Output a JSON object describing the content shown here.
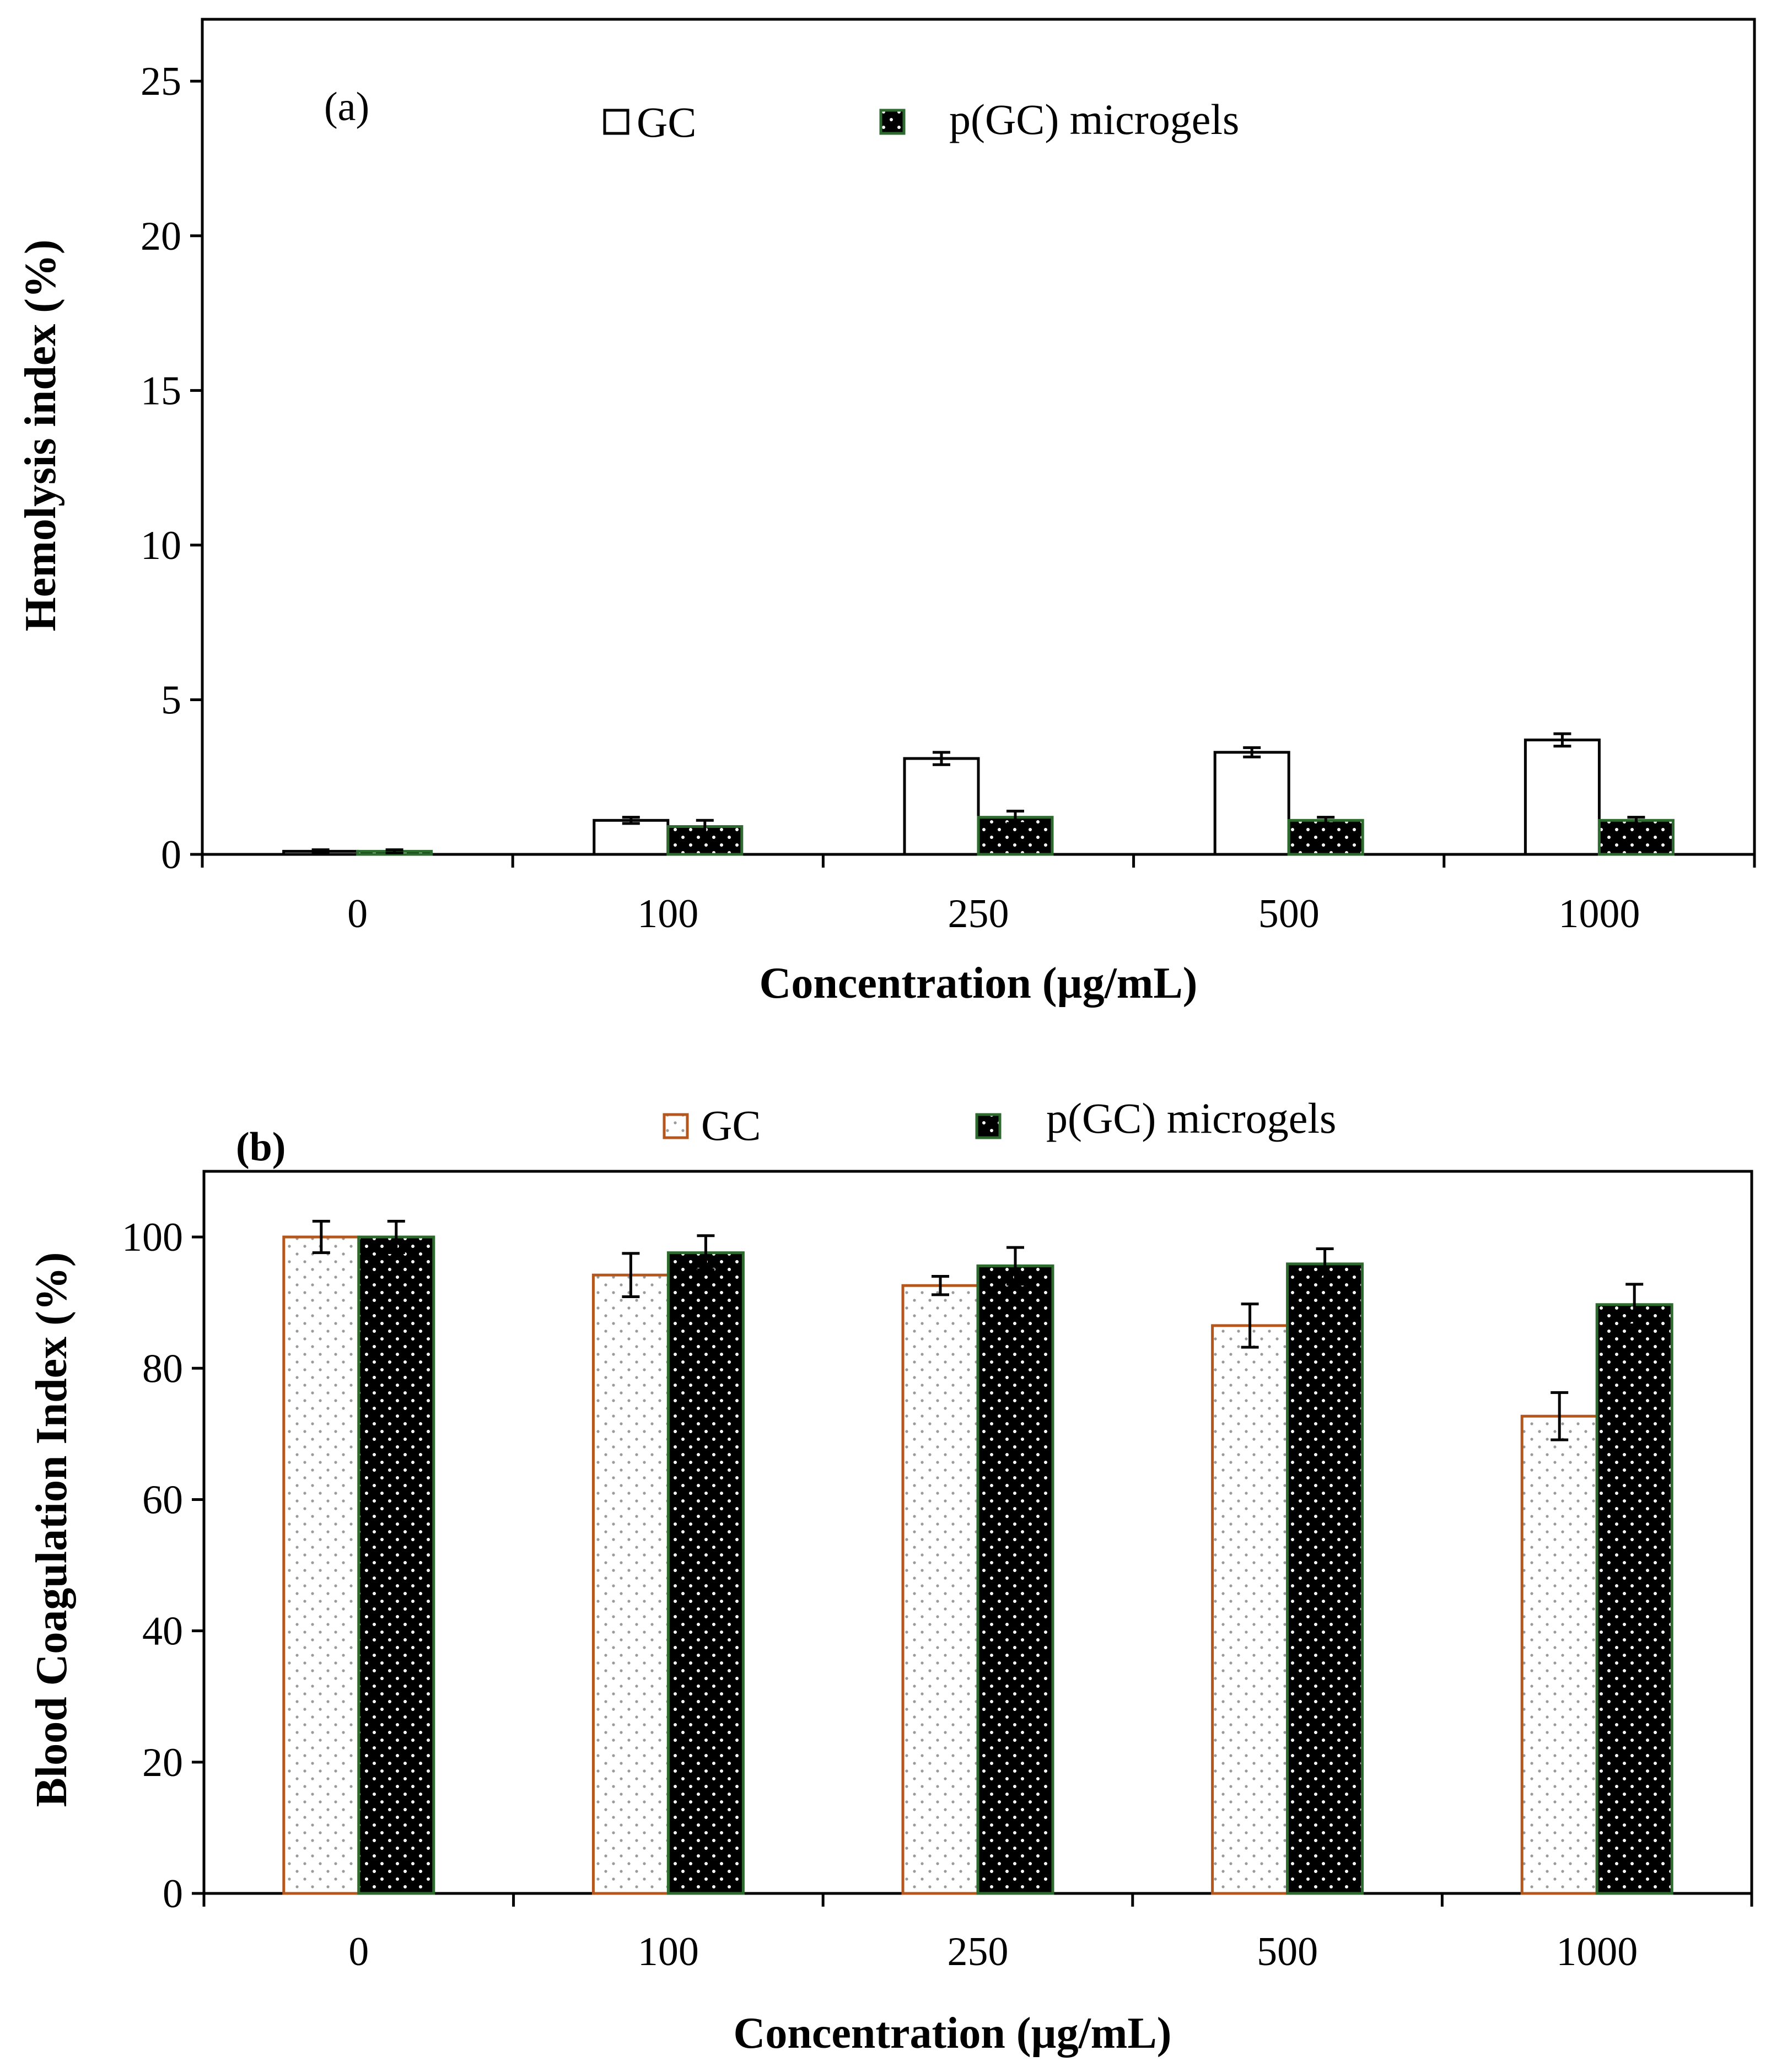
{
  "chart_data": [
    {
      "type": "bar",
      "panel_label": "(a)",
      "title": "",
      "xlabel": "Concentration (µg/mL)",
      "ylabel": "Hemolysis index (%)",
      "categories": [
        "0",
        "100",
        "250",
        "500",
        "1000"
      ],
      "ylim": [
        0,
        27
      ],
      "yticks": [
        0,
        5,
        10,
        15,
        20,
        25
      ],
      "grid": false,
      "legend_position": "top",
      "series": [
        {
          "name": "GC",
          "values": [
            0.1,
            1.1,
            3.1,
            3.3,
            3.7
          ],
          "errors": [
            0.05,
            0.1,
            0.2,
            0.15,
            0.2
          ],
          "fill": "#ffffff",
          "stroke": "#000000",
          "pattern": "none"
        },
        {
          "name": "p(GC) microgels",
          "values": [
            0.1,
            0.9,
            1.2,
            1.1,
            1.1
          ],
          "errors": [
            0.05,
            0.2,
            0.2,
            0.1,
            0.1
          ],
          "fill": "#000000",
          "stroke": "#2e6b2e",
          "pattern": "white-dots"
        }
      ]
    },
    {
      "type": "bar",
      "panel_label": "(b)",
      "title": "",
      "xlabel": "Concentration (µg/mL)",
      "ylabel": "Blood Coagulation Index (%)",
      "categories": [
        "0",
        "100",
        "250",
        "500",
        "1000"
      ],
      "ylim": [
        0,
        110
      ],
      "yticks": [
        0,
        20,
        40,
        60,
        80,
        100
      ],
      "grid": false,
      "legend_position": "top",
      "series": [
        {
          "name": "GC",
          "values": [
            100,
            94.2,
            92.6,
            86.5,
            72.7
          ],
          "errors": [
            2.4,
            3.3,
            1.4,
            3.3,
            3.6
          ],
          "fill": "#ffffff",
          "stroke": "#b5561c",
          "pattern": "gray-dots"
        },
        {
          "name": "p(GC) microgels",
          "values": [
            100,
            97.6,
            95.6,
            95.9,
            89.7
          ],
          "errors": [
            2.4,
            2.6,
            2.8,
            2.3,
            3.1
          ],
          "fill": "#000000",
          "stroke": "#2e6b2e",
          "pattern": "white-dots"
        }
      ]
    }
  ]
}
